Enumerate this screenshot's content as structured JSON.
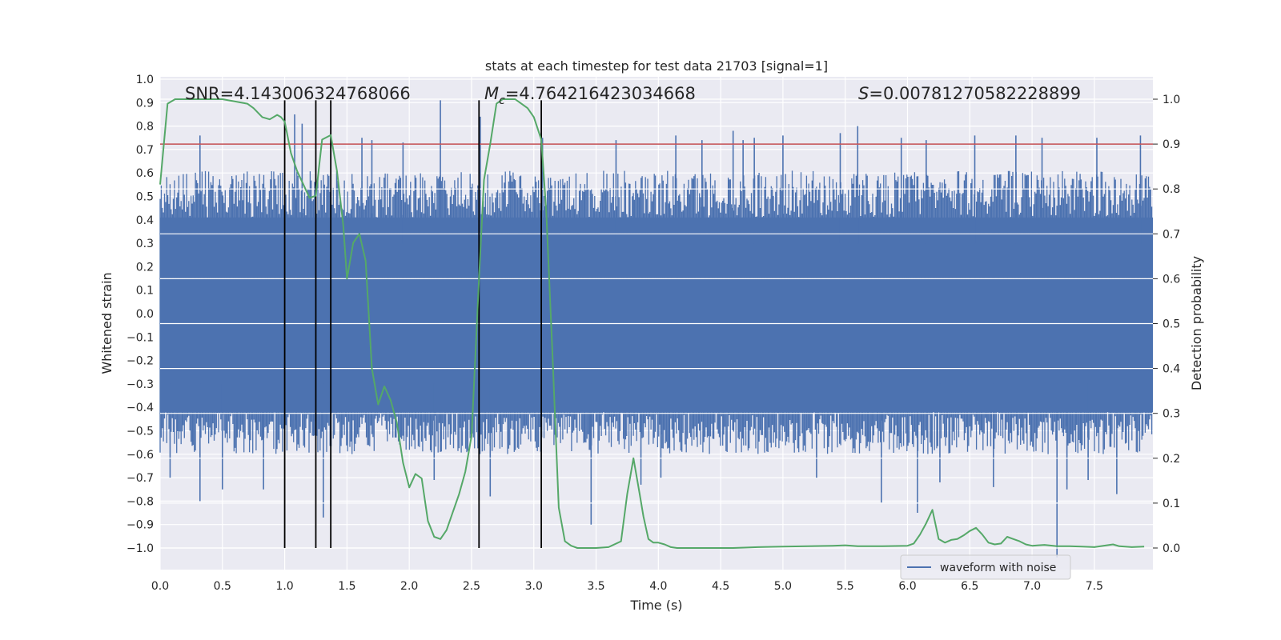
{
  "chart_data": {
    "type": "line",
    "title": "stats at each timestep for test data 21703 [signal=1]",
    "xlabel": "Time (s)",
    "ylabel": "Whitened strain",
    "y2label": "Detection probability",
    "xlim": [
      0.0,
      7.97
    ],
    "ylim": [
      -1.08,
      1.0
    ],
    "y2lim": [
      0.0,
      1.0
    ],
    "x_ticks": [
      "0.0",
      "0.5",
      "1.0",
      "1.5",
      "2.0",
      "2.5",
      "3.0",
      "3.5",
      "4.0",
      "4.5",
      "5.0",
      "5.5",
      "6.0",
      "6.5",
      "7.0",
      "7.5"
    ],
    "y_ticks": [
      "1.0",
      "0.9",
      "0.8",
      "0.7",
      "0.6",
      "0.5",
      "0.4",
      "0.3",
      "0.2",
      "0.1",
      "0.0",
      "−0.1",
      "−0.2",
      "−0.3",
      "−0.4",
      "−0.5",
      "−0.6",
      "−0.7",
      "−0.8",
      "−0.9",
      "−1.0"
    ],
    "y2_ticks": [
      "1.0",
      "0.9",
      "0.8",
      "0.7",
      "0.6",
      "0.5",
      "0.4",
      "0.3",
      "0.2",
      "0.1",
      "0.0"
    ],
    "annotations": {
      "snr": "SNR=4.143006324768066",
      "mc_symbol": "M",
      "mc_sub": "c",
      "mc_value": "=4.764216423034668",
      "s_symbol": "S",
      "s_value": "=0.00781270582228899"
    },
    "legend": {
      "label": "waveform with noise",
      "loc": "lower right"
    },
    "threshold": {
      "value": 0.9,
      "axis": "y2",
      "color": "#c44e52"
    },
    "vlines": [
      1.0,
      1.25,
      1.37,
      2.56,
      3.06
    ],
    "vline_range": [
      -1.0,
      0.91
    ],
    "waveform": {
      "name": "waveform with noise",
      "color": "#4c72b0",
      "band_lo": -0.42,
      "band_hi": 0.41,
      "spikes": [
        [
          0.32,
          0.76
        ],
        [
          0.32,
          -0.8
        ],
        [
          0.08,
          -0.7
        ],
        [
          0.5,
          -0.75
        ],
        [
          0.83,
          -0.75
        ],
        [
          1.08,
          0.85
        ],
        [
          1.14,
          0.81
        ],
        [
          1.31,
          -0.87
        ],
        [
          1.62,
          0.75
        ],
        [
          1.7,
          0.74
        ],
        [
          1.95,
          0.73
        ],
        [
          2.2,
          -0.71
        ],
        [
          2.25,
          0.91
        ],
        [
          2.57,
          0.84
        ],
        [
          2.65,
          -0.78
        ],
        [
          3.07,
          0.75
        ],
        [
          3.46,
          -0.9
        ],
        [
          3.66,
          0.74
        ],
        [
          3.86,
          -0.73
        ],
        [
          4.02,
          -0.7
        ],
        [
          4.14,
          0.76
        ],
        [
          4.35,
          0.74
        ],
        [
          4.6,
          0.78
        ],
        [
          4.68,
          0.74
        ],
        [
          4.77,
          0.75
        ],
        [
          5.0,
          0.76
        ],
        [
          5.27,
          -0.7
        ],
        [
          5.46,
          0.77
        ],
        [
          5.6,
          0.8
        ],
        [
          5.79,
          -0.81
        ],
        [
          5.95,
          0.75
        ],
        [
          6.08,
          -0.85
        ],
        [
          6.15,
          0.74
        ],
        [
          6.26,
          -0.72
        ],
        [
          6.54,
          0.76
        ],
        [
          6.69,
          -0.74
        ],
        [
          6.87,
          0.76
        ],
        [
          7.08,
          0.75
        ],
        [
          7.2,
          -1.04
        ],
        [
          7.28,
          -0.75
        ],
        [
          7.45,
          -0.71
        ],
        [
          7.52,
          0.75
        ],
        [
          7.68,
          -0.77
        ],
        [
          7.87,
          0.76
        ]
      ]
    },
    "detection_probability": {
      "name": "detection probability",
      "color": "#55a868",
      "x": [
        0.0,
        0.06,
        0.12,
        0.18,
        0.3,
        0.5,
        0.7,
        0.75,
        0.82,
        0.88,
        0.94,
        0.97,
        1.0,
        1.05,
        1.1,
        1.15,
        1.2,
        1.25,
        1.3,
        1.37,
        1.42,
        1.47,
        1.5,
        1.55,
        1.6,
        1.65,
        1.7,
        1.75,
        1.8,
        1.85,
        1.9,
        1.95,
        2.0,
        2.05,
        2.1,
        2.15,
        2.2,
        2.25,
        2.3,
        2.35,
        2.4,
        2.45,
        2.5,
        2.56,
        2.6,
        2.65,
        2.7,
        2.75,
        2.8,
        2.85,
        2.9,
        2.95,
        3.0,
        3.06,
        3.1,
        3.15,
        3.2,
        3.25,
        3.3,
        3.35,
        3.4,
        3.5,
        3.6,
        3.7,
        3.75,
        3.8,
        3.85,
        3.88,
        3.92,
        3.96,
        4.0,
        4.05,
        4.1,
        4.15,
        4.2,
        4.4,
        4.6,
        4.8,
        5.0,
        5.2,
        5.4,
        5.5,
        5.6,
        5.8,
        6.0,
        6.05,
        6.1,
        6.15,
        6.2,
        6.25,
        6.3,
        6.35,
        6.4,
        6.45,
        6.5,
        6.55,
        6.6,
        6.65,
        6.7,
        6.75,
        6.8,
        6.85,
        6.9,
        6.95,
        7.0,
        7.05,
        7.1,
        7.2,
        7.3,
        7.4,
        7.5,
        7.6,
        7.65,
        7.7,
        7.8,
        7.9
      ],
      "y": [
        0.81,
        0.99,
        1.0,
        1.0,
        1.0,
        1.0,
        0.99,
        0.98,
        0.96,
        0.955,
        0.965,
        0.96,
        0.95,
        0.88,
        0.84,
        0.81,
        0.78,
        0.785,
        0.91,
        0.92,
        0.84,
        0.72,
        0.6,
        0.68,
        0.7,
        0.64,
        0.4,
        0.32,
        0.36,
        0.33,
        0.28,
        0.19,
        0.135,
        0.165,
        0.155,
        0.06,
        0.025,
        0.02,
        0.04,
        0.08,
        0.12,
        0.17,
        0.25,
        0.6,
        0.82,
        0.9,
        0.99,
        1.0,
        1.0,
        1.0,
        0.99,
        0.98,
        0.96,
        0.91,
        0.75,
        0.43,
        0.09,
        0.015,
        0.005,
        0.0,
        0.0,
        0.0,
        0.002,
        0.015,
        0.12,
        0.2,
        0.12,
        0.07,
        0.02,
        0.012,
        0.012,
        0.008,
        0.002,
        0.0,
        0.0,
        0.0,
        0.0,
        0.002,
        0.003,
        0.004,
        0.005,
        0.006,
        0.004,
        0.004,
        0.005,
        0.01,
        0.03,
        0.055,
        0.085,
        0.02,
        0.012,
        0.018,
        0.02,
        0.028,
        0.038,
        0.045,
        0.03,
        0.012,
        0.008,
        0.01,
        0.025,
        0.02,
        0.015,
        0.008,
        0.005,
        0.006,
        0.007,
        0.004,
        0.004,
        0.003,
        0.002,
        0.006,
        0.008,
        0.004,
        0.002,
        0.003
      ]
    }
  }
}
